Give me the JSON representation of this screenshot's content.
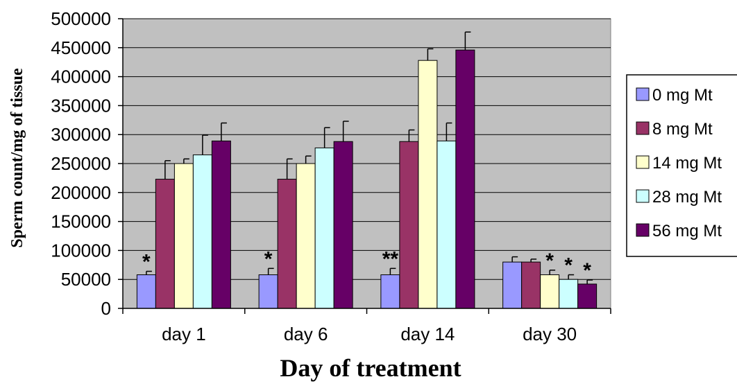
{
  "chart_data": {
    "type": "bar",
    "title": "",
    "xlabel": "Day of treatment",
    "ylabel": "Sperm count/mg of tissue",
    "ylim": [
      0,
      500000
    ],
    "yticks": [
      0,
      50000,
      100000,
      150000,
      200000,
      250000,
      300000,
      350000,
      400000,
      450000,
      500000
    ],
    "grid": true,
    "legend_position": "right",
    "categories": [
      "day 1",
      "day 6",
      "day 14",
      "day 30"
    ],
    "series": [
      {
        "name": "0 mg Mt",
        "color": "#9999ff",
        "values": [
          58000,
          58000,
          58000,
          80000
        ],
        "errors": [
          6000,
          11000,
          11000,
          9000
        ]
      },
      {
        "name": "8 mg Mt",
        "color": "#993366",
        "values": [
          223000,
          223000,
          288000,
          80000
        ],
        "errors": [
          32000,
          35000,
          20000,
          5000
        ]
      },
      {
        "name": "14 mg Mt",
        "color": "#ffffcc",
        "values": [
          250000,
          250000,
          428000,
          58000
        ],
        "errors": [
          8000,
          13000,
          20000,
          8000
        ]
      },
      {
        "name": "28 mg Mt",
        "color": "#ccffff",
        "values": [
          265000,
          277000,
          289000,
          50000
        ],
        "errors": [
          34000,
          35000,
          31000,
          8000
        ]
      },
      {
        "name": "56 mg Mt",
        "color": "#660066",
        "values": [
          289000,
          288000,
          446000,
          42000
        ],
        "errors": [
          31000,
          35000,
          31000,
          7000
        ]
      }
    ],
    "annotations": [
      {
        "category": 0,
        "series": 0,
        "text": "*"
      },
      {
        "category": 1,
        "series": 0,
        "text": "*"
      },
      {
        "category": 2,
        "series": 0,
        "text": "**"
      },
      {
        "category": 3,
        "series": 2,
        "text": "*"
      },
      {
        "category": 3,
        "series": 3,
        "text": "*"
      },
      {
        "category": 3,
        "series": 4,
        "text": "*"
      }
    ]
  }
}
